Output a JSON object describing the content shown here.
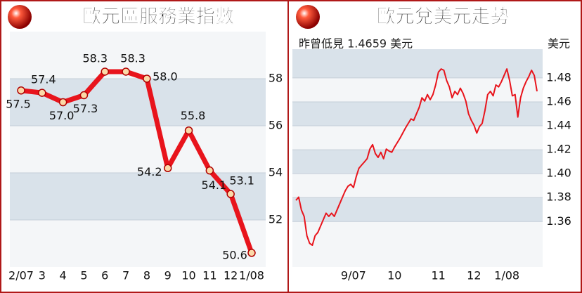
{
  "chart_data": [
    {
      "type": "line",
      "title": "歐元區服務業指數",
      "categories": [
        "2/07",
        "3",
        "4",
        "5",
        "6",
        "7",
        "8",
        "9",
        "10",
        "11",
        "12",
        "1/08"
      ],
      "values": [
        57.5,
        57.4,
        57.0,
        57.3,
        58.3,
        58.3,
        58.0,
        54.2,
        55.8,
        54.1,
        53.1,
        50.6
      ],
      "value_labels": [
        "57.5",
        "57.4",
        "57.0",
        "57.3",
        "58.3",
        "58.3",
        "58.0",
        "54.2",
        "55.8",
        "54.1",
        "53.1",
        "50.6"
      ],
      "color": "#e8141c",
      "ylim": [
        50,
        60
      ],
      "yticks": [
        52,
        54,
        56,
        58
      ],
      "grid": true
    },
    {
      "type": "line",
      "title": "歐元兌美元走勢",
      "subtitle": "昨曾低見 1.4659 美元",
      "y_label": "美元",
      "categories": [
        null,
        null,
        null,
        null,
        null,
        null,
        null,
        null,
        null,
        null,
        null,
        null,
        null,
        null,
        null,
        null,
        null,
        null,
        null,
        null,
        null,
        "9/07",
        null,
        null,
        null,
        null,
        null,
        null,
        null,
        null,
        null,
        null,
        null,
        null,
        null,
        null,
        "10",
        null,
        null,
        null,
        null,
        null,
        null,
        null,
        null,
        null,
        null,
        null,
        null,
        null,
        null,
        null,
        "11",
        null,
        null,
        null,
        null,
        null,
        null,
        null,
        null,
        null,
        null,
        null,
        null,
        "12",
        null,
        null,
        null,
        null,
        null,
        null,
        null,
        null,
        null,
        null,
        null,
        "1/08",
        null,
        null,
        null,
        null,
        null,
        null,
        null,
        null,
        null,
        null,
        null
      ],
      "values": [
        1.3777,
        1.3804,
        1.3697,
        1.3643,
        1.3482,
        1.3418,
        1.3402,
        1.3482,
        1.3509,
        1.3563,
        1.3616,
        1.367,
        1.3643,
        1.367,
        1.3643,
        1.3697,
        1.375,
        1.3804,
        1.3857,
        1.3895,
        1.3911,
        1.3884,
        1.3975,
        1.4045,
        1.4072,
        1.4098,
        1.4125,
        1.4205,
        1.4243,
        1.4168,
        1.4136,
        1.4179,
        1.4125,
        1.4205,
        1.4189,
        1.4179,
        1.4222,
        1.4259,
        1.4297,
        1.4339,
        1.4382,
        1.442,
        1.4457,
        1.4446,
        1.45,
        1.4554,
        1.4634,
        1.4607,
        1.4661,
        1.4618,
        1.4661,
        1.4741,
        1.4848,
        1.4875,
        1.4864,
        1.4779,
        1.4725,
        1.4634,
        1.4688,
        1.4661,
        1.4714,
        1.4671,
        1.4607,
        1.45,
        1.4446,
        1.4404,
        1.4339,
        1.4393,
        1.442,
        1.4527,
        1.4661,
        1.4688,
        1.465,
        1.4741,
        1.4725,
        1.4768,
        1.4821,
        1.4875,
        1.4779,
        1.465,
        1.4661,
        1.4473,
        1.4634,
        1.4714,
        1.4768,
        1.4811,
        1.4864,
        1.4821,
        1.4688
      ],
      "color": "#e8141c",
      "ylim": [
        1.322,
        1.504
      ],
      "yticks": [
        1.36,
        1.38,
        {
          "value": 1.4,
          "label": "1.40"
        },
        1.42,
        1.44,
        1.46,
        1.48
      ],
      "grid": true
    }
  ]
}
